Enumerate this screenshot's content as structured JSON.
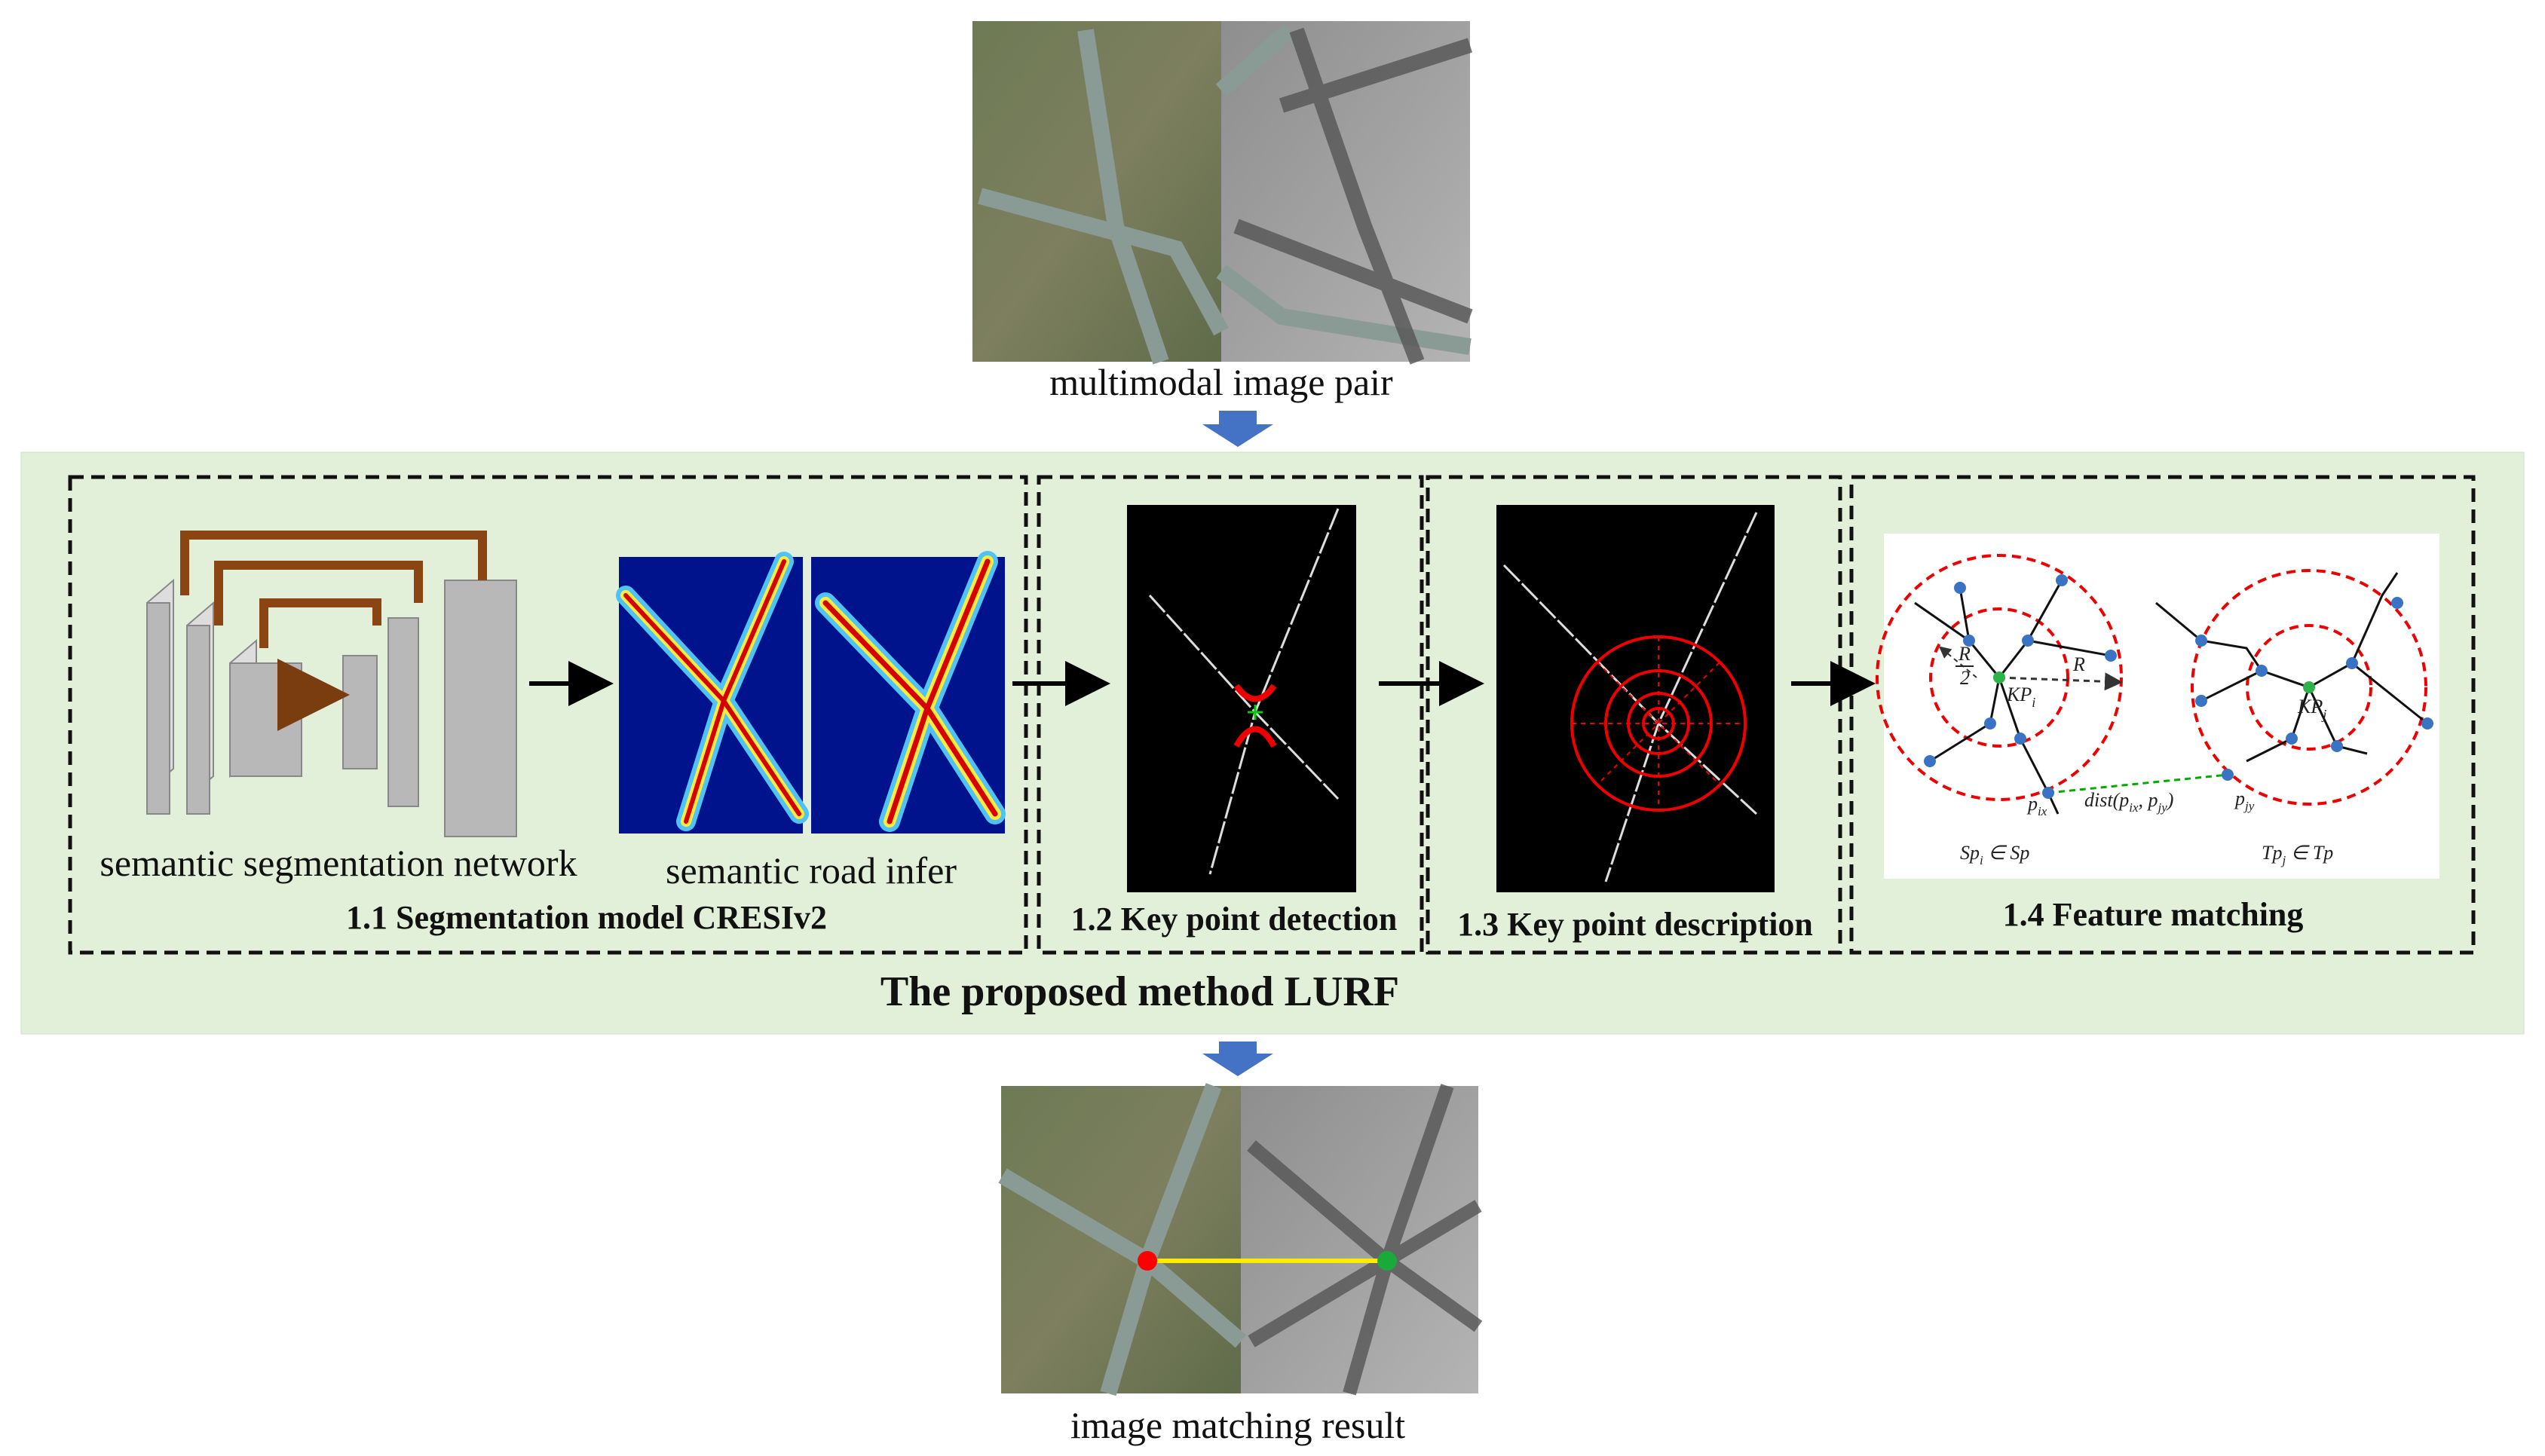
{
  "top": {
    "caption": "multimodal image pair"
  },
  "panel": {
    "title": "The proposed method LURF",
    "steps": [
      {
        "title": "1.1 Segmentation model CRESIv2",
        "network_label": "semantic segmentation network",
        "infer_label": "semantic road infer"
      },
      {
        "title": "1.2 Key point detection"
      },
      {
        "title": "1.3 Key point description"
      },
      {
        "title": "1.4 Feature matching",
        "labels": {
          "half_radius": {
            "num": "R",
            "den": "2"
          },
          "radius": "R",
          "kp_left": {
            "base": "KP",
            "sub": "i"
          },
          "kp_right": {
            "base": "KP",
            "sub": "j"
          },
          "dist": {
            "a": "dist(p",
            "s1": "ix",
            "b": ", p",
            "s2": "jy",
            "c": ")"
          },
          "p_left": {
            "base": "p",
            "sub": "ix"
          },
          "p_right": {
            "base": "p",
            "sub": "jy"
          },
          "set_left": {
            "base": "Sp",
            "sub": "i",
            "rest": " ∈ Sp"
          },
          "set_right": {
            "base": "Tp",
            "sub": "j",
            "rest": " ∈ Tp"
          }
        }
      }
    ]
  },
  "bottom": {
    "caption": "image matching result"
  }
}
